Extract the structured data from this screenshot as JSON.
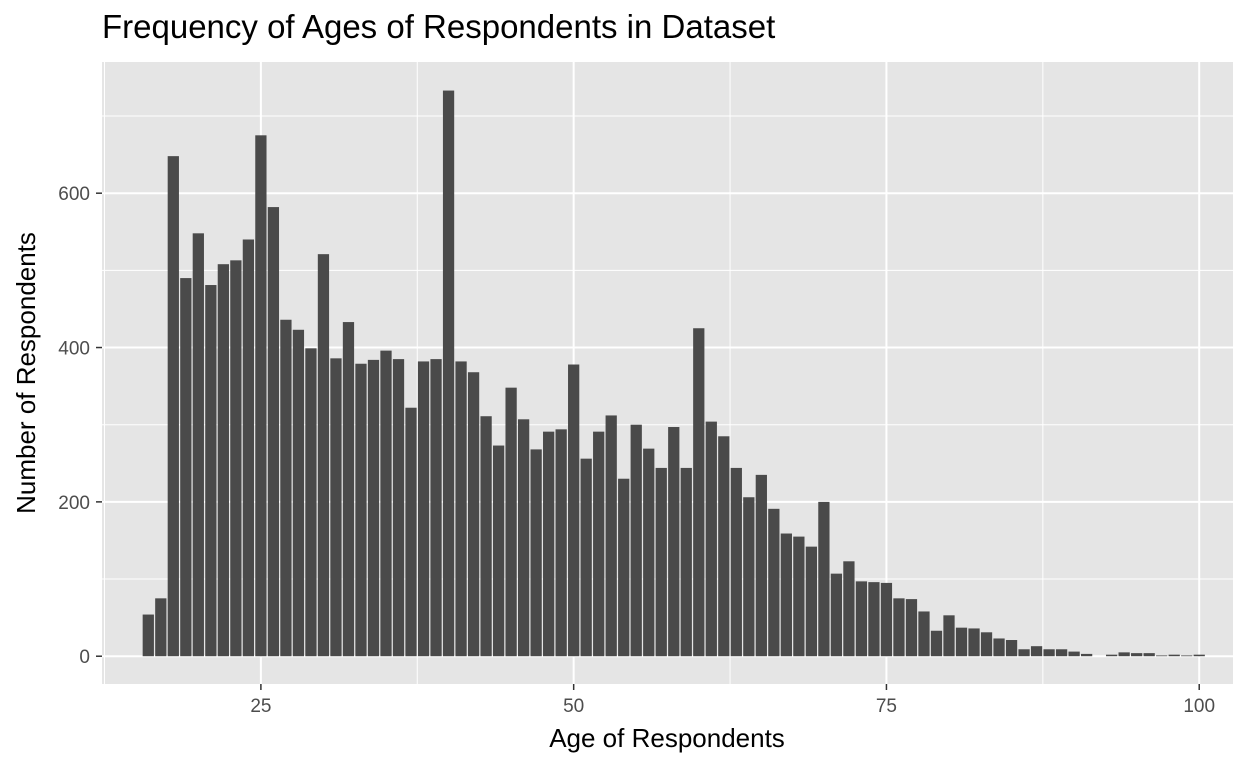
{
  "chart_data": {
    "type": "bar",
    "title": "Frequency of Ages of Respondents in Dataset",
    "xlabel": "Age of Respondents",
    "ylabel": "Number of Respondents",
    "xlim": [
      12.3,
      102.7
    ],
    "ylim": [
      -36,
      770
    ],
    "xticks": [
      25,
      50,
      75,
      100
    ],
    "yticks": [
      0,
      200,
      400,
      600
    ],
    "grid": true,
    "legend": "none",
    "bar_color": "#4a4a4a",
    "panel_color": "#e5e5e5",
    "grid_color": "#ffffff",
    "series": [
      {
        "x": [
          16,
          17,
          18,
          19,
          20,
          21,
          22,
          23,
          24,
          25,
          26,
          27,
          28,
          29,
          30,
          31,
          32,
          33,
          34,
          35,
          36,
          37,
          38,
          39,
          40,
          41,
          42,
          43,
          44,
          45,
          46,
          47,
          48,
          49,
          50,
          51,
          52,
          53,
          54,
          55,
          56,
          57,
          58,
          59,
          60,
          61,
          62,
          63,
          64,
          65,
          66,
          67,
          68,
          69,
          70,
          71,
          72,
          73,
          74,
          75,
          76,
          77,
          78,
          79,
          80,
          81,
          82,
          83,
          84,
          85,
          86,
          87,
          88,
          89,
          90,
          91,
          92,
          93,
          94,
          95,
          96,
          97,
          98,
          99,
          100
        ],
        "values": [
          54,
          75,
          648,
          490,
          548,
          481,
          508,
          513,
          540,
          675,
          582,
          436,
          423,
          399,
          521,
          386,
          433,
          379,
          384,
          396,
          385,
          322,
          382,
          385,
          733,
          382,
          368,
          311,
          273,
          348,
          307,
          268,
          291,
          294,
          378,
          256,
          291,
          312,
          230,
          300,
          269,
          244,
          297,
          244,
          425,
          304,
          285,
          244,
          206,
          235,
          191,
          159,
          155,
          142,
          200,
          107,
          123,
          97,
          96,
          95,
          75,
          74,
          58,
          33,
          53,
          37,
          36,
          31,
          23,
          21,
          9,
          13,
          9,
          9,
          6,
          3,
          0,
          2,
          5,
          4,
          4,
          1,
          2,
          1,
          2
        ]
      }
    ]
  }
}
